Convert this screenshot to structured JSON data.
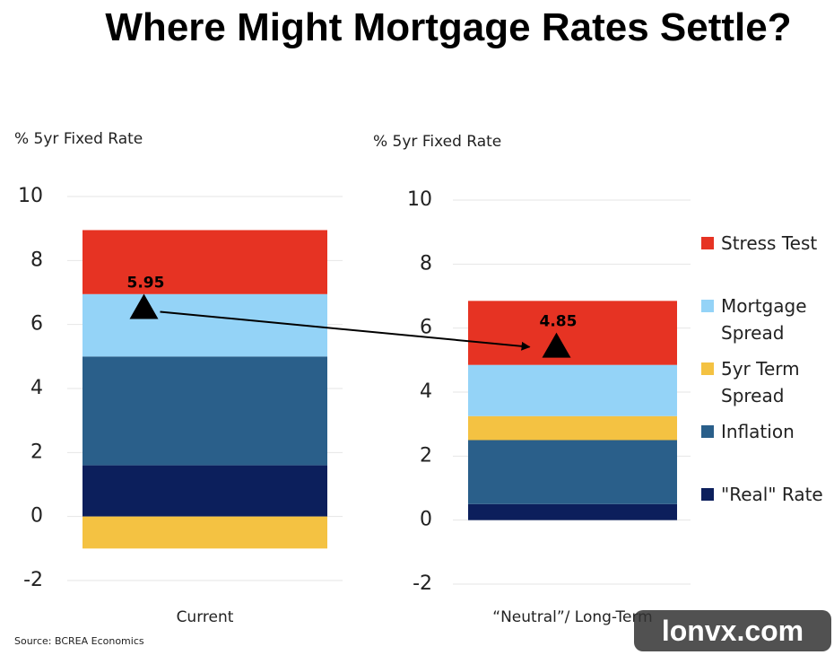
{
  "title": "Where Might Mortgage Rates Settle?",
  "source": "Source: BCREA Economics",
  "watermark": "lonvx.com",
  "chart_data": [
    {
      "type": "bar",
      "stacked": true,
      "y_label": "%  5yr Fixed Rate",
      "categories": [
        "Current"
      ],
      "series": [
        {
          "color": "#0c1f5c",
          "values": [
            1.6
          ]
        },
        {
          "color": "#2a5f8a",
          "values": [
            3.4
          ]
        },
        {
          "color": "#f4c242",
          "values": [
            -1
          ]
        },
        {
          "color": "#94d3f7",
          "values": [
            1.95
          ]
        },
        {
          "color": "#e63323",
          "values": [
            2
          ]
        }
      ],
      "marker": 5.95,
      "ylim": [
        -2,
        10
      ],
      "yticks": [
        -2,
        0,
        2,
        4,
        6,
        8,
        10
      ],
      "grid": true
    },
    {
      "type": "bar",
      "stacked": true,
      "y_label": "%  5yr Fixed Rate",
      "categories": [
        "“Neutral”/ Long-Term"
      ],
      "series": [
        {
          "name": "\"Real\" Rate",
          "color": "#0c1f5c",
          "values": [
            0.5
          ]
        },
        {
          "name": "Inflation",
          "color": "#2a5f8a",
          "values": [
            2.0
          ]
        },
        {
          "name": "5yr Term Spread",
          "color": "#f4c242",
          "values": [
            0.75
          ]
        },
        {
          "name": "Mortgage Spread",
          "color": "#94d3f7",
          "values": [
            1.6
          ]
        },
        {
          "name": "Stress Test",
          "color": "#e63323",
          "values": [
            2
          ]
        }
      ],
      "marker": 4.85,
      "ylim": [
        -2,
        10
      ],
      "yticks": [
        -2,
        0,
        2,
        4,
        6,
        8,
        10
      ],
      "grid": true
    }
  ]
}
